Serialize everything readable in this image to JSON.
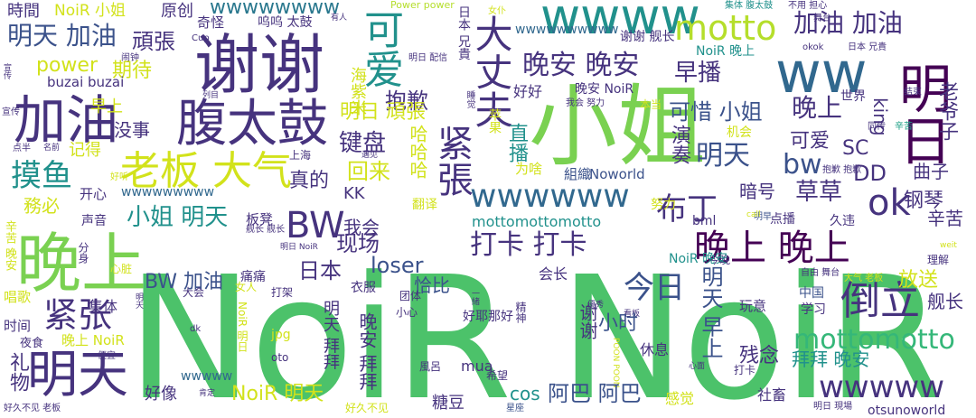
{
  "words": {
    "noir_big": "NoiR NoiR",
    "xiaojie": "小姐",
    "xiexie": "谢谢",
    "wanshang": "晚上",
    "fukuko": "腹太鼓",
    "jiayou": "加油",
    "mingtian": "明天",
    "laoban": "老板 大气",
    "ww": "ww",
    "wwww": "wwww",
    "mingri": "明日",
    "keai": "可爱",
    "motto": "motto",
    "taidaifu": "大丈夫",
    "wanan": "晚安 晚安",
    "jiayou2": "加油 加油",
    "daoli": "倒立",
    "wanshang2": "晚上 晚上",
    "daka": "打卡 打卡",
    "jinzhang": "紧張",
    "jinzhang2": "紧张",
    "mottomotto": "mottomotto",
    "wwwww": "wwwww",
    "wwwwww": "wwwwww",
    "bw": "BW",
    "ok": "ok",
    "buding": "布丁",
    "moyu": "摸鱼",
    "zaobo": "早播",
    "jianpan": "键盘",
    "baoqian": "抱歉",
    "jinri": "今日",
    "mingtian_jiayou": "明天 加油",
    "wanbao": "頑張",
    "shiguan": "時間",
    "noir_xiaojie": "NoiR 小姐",
    "yuanchuang": "原创",
    "qiguai": "奇怪",
    "wwwwwwww": "wwwwwwww",
    "wuwu": "呜呜 太鼓",
    "power_power": "Power power",
    "youren": "有人",
    "riben_xiongdi": "日本 兄貴",
    "nv": "女仆",
    "jiti_fukuko": "集体 腹太鼓",
    "buyong_danxin": "不用 担心",
    "wutai": "舞台",
    "wwwwwww2": "wwwwwwwwww",
    "xiexie_jianchang": "谢谢 舰长",
    "noir_wanshang": "NoiR 晚上",
    "okok": "okok",
    "riben_xiong2": "日本 兄貴",
    "cup": "Cup",
    "naozhong": "闹钟",
    "mingri_peixin": "明日 配信",
    "qidai": "期待",
    "power": "power",
    "buzai": "buzai buzai",
    "haimingai": "海紫米",
    "mingri_wanzhang": "明日 頑張",
    "haode": "好好",
    "wanan_noir": "晚安 NoiR",
    "bendang": "本当",
    "king": "king",
    "laoyezi": "老爷子",
    "kexi_xiaojie": "可惜 小姐",
    "wanshang_up": "晚上",
    "shijie": "世界",
    "jieshu": "结束",
    "zaoshang": "早上",
    "meishi": "没事",
    "jide": "记得",
    "kaixin": "开心",
    "xuanchuan": "宣传",
    "liebiao": "列目",
    "dianban": "点半",
    "mingqian": "名前",
    "shuijiao": "睡觉",
    "wohui_nuli": "我会 努力",
    "jihui": "机会",
    "tongzuo": "同传",
    "xiexin": "辛苦",
    "sc": "SC",
    "keai2": "可爱",
    "dd": "DD",
    "quzi": "曲子",
    "yanzou": "演奏",
    "zhibo": "直播",
    "mingtian2": "明天",
    "bw2": "bw",
    "hahaha": "哈哈哈",
    "zhende": "真的",
    "shanghai": "上海",
    "huilai": "回来",
    "kk": "KK",
    "haotang": "好听",
    "wwwwwwww2": "wwwwwwwww",
    "yujian": "遇见",
    "weishenme": "为啥",
    "baoqian_baoqian": "抱歉 抱歉",
    "noworld": "Noworld",
    "zuzhi": "組織",
    "anhao": "暗号",
    "caocao": "草草",
    "gangqin": "钢琴",
    "xinku2": "辛苦",
    "wuyue": "務必",
    "banqian": "板凳",
    "jianchang_jianchang": "舰长 舰长",
    "fanyi": "翻译",
    "wohui": "我会",
    "xiaojie_mingtian": "小姐 明天",
    "mottomottomotto": "mottomottomotto",
    "nuli": "努力",
    "pingguo": "苹果",
    "mingpai": "明早",
    "bml": "bml",
    "dianbo": "点播",
    "jiu": "久违",
    "call": "call",
    "shengyin": "声音",
    "xinku_wanan": "辛苦 晚安",
    "xianchang": "现场",
    "riben": "日本",
    "bw_jiayou": "BW 加油",
    "loser": "loser",
    "qiabi": "恰比",
    "huizhang": "会长",
    "jinwan": "今晚",
    "noir_wanan": "NoiR 晚安",
    "fangsong": "放送",
    "fenshen": "分身",
    "xinzang": "心脏",
    "tongtong": "痛痛",
    "yifu": "衣服",
    "mingri_noir": "明日 NoiR",
    "kanban": "看板",
    "weit": "weit",
    "ziyou_wutai": "自由 舞台",
    "lijie": "理解",
    "changge": "唱歌",
    "jiti": "集体",
    "nvren": "女人",
    "dajia": "打架",
    "tuanti": "团体",
    "yiqi": "一緒",
    "youxiu": "優秀",
    "xiaoshi": "小时",
    "zhongguo": "中国",
    "daqi_laoban": "大气 老板",
    "jianchang": "舰长",
    "shijian": "时间",
    "dahui": "大会",
    "xiaoxin": "小心",
    "haoyebanhao": "好耶那好",
    "jingshen": "精神",
    "mingtian_zaoshang": "明天 早上",
    "xuexi": "学习",
    "wanxiao": "玩意",
    "yexiao": "夜食",
    "wanshang_noir": "晚上 NoiR",
    "noir_mingri": "NoiR 明日",
    "jpg": "jpg",
    "mingtian_baibai": "明天 拜拜",
    "xiexie_v": "谢谢",
    "xiuxi": "休息",
    "canrian": "残念",
    "baibai_wanan": "拜拜 晚安",
    "liwu": "礼物",
    "bianyi": "便宜",
    "dk": "dk",
    "oto": "oto",
    "wanan_baibai": "晚安 拜拜",
    "mua": "mua",
    "fengl": "風呂",
    "xiwang": "希望",
    "poonpoon": "POON POON",
    "daka2": "打卡",
    "xinmian": "心面",
    "shechu": "社畜",
    "wwwww2": "wwwww",
    "haoxiang": "好像",
    "noir_mingtian": "NoiR 明天",
    "cos": "cos",
    "aba": "阿巴 阿巴",
    "tangdou": "糖豆",
    "ganjue": "感觉",
    "kending": "肯定",
    "haojiu_laoban": "好久不见 老板",
    "haojiu": "好久不见",
    "xingzuo": "星座",
    "otsunoworld": "otsunoworld",
    "mingri_xianchang": "明日 現場",
    "xuanchuan2": "宣传",
    "mingtian_v": "明天"
  }
}
